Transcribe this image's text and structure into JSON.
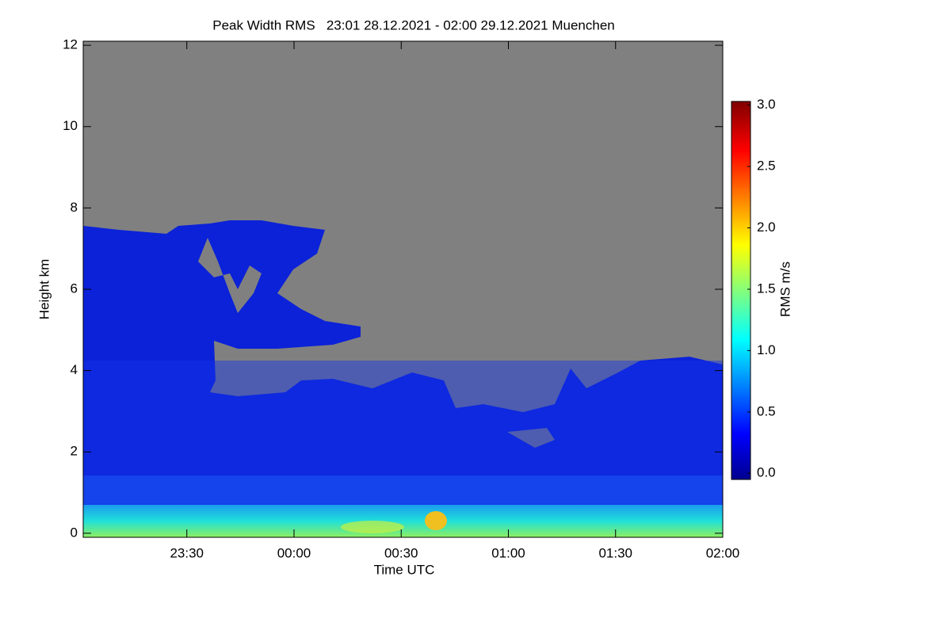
{
  "chart_data": {
    "type": "heatmap",
    "title": "Peak Width RMS   23:01 28.12.2021 - 02:00 29.12.2021 Muenchen",
    "x_label": "Time UTC",
    "y_label": "Height km",
    "xlim": [
      -59,
      120
    ],
    "xticks": [
      {
        "value": -30,
        "label": "23:30"
      },
      {
        "value": 0,
        "label": "00:00"
      },
      {
        "value": 30,
        "label": "00:30"
      },
      {
        "value": 60,
        "label": "01:00"
      },
      {
        "value": 90,
        "label": "01:30"
      },
      {
        "value": 120,
        "label": "02:00"
      }
    ],
    "ylim": [
      -0.1,
      12.1
    ],
    "yticks": [
      0,
      2,
      4,
      6,
      8,
      10,
      12
    ],
    "colorbar": {
      "label": "RMS m/s",
      "lim": [
        -0.05,
        3.03
      ],
      "ticks": [
        {
          "value": 0,
          "label": "0.0"
        },
        {
          "value": 0.5,
          "label": "0.5"
        },
        {
          "value": 1,
          "label": "1.0"
        },
        {
          "value": 1.5,
          "label": "1.5"
        },
        {
          "value": 2,
          "label": "2.0"
        },
        {
          "value": 2.5,
          "label": "2.5"
        },
        {
          "value": 3,
          "label": "3.0"
        }
      ]
    }
  }
}
